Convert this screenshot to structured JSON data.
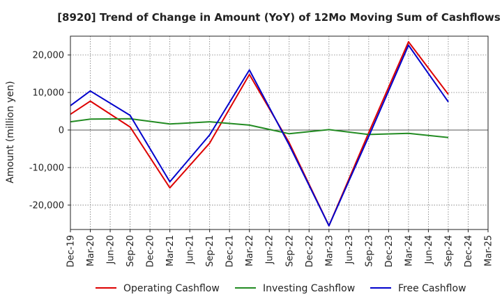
{
  "chart_data": {
    "type": "line",
    "title": "[8920]  Trend of Change in Amount (YoY) of 12Mo Moving Sum of Cashflows",
    "ylabel": "Amount (million yen)",
    "xlabel": "",
    "ylim": [
      -26500,
      25000
    ],
    "yticks": [
      20000,
      10000,
      0,
      -10000,
      -20000
    ],
    "ytick_labels": [
      "20,000",
      "10,000",
      "0",
      "-10,000",
      "-20,000"
    ],
    "grid": true,
    "legend_position": "bottom",
    "categories": [
      "Dec-19",
      "Mar-20",
      "Jun-20",
      "Sep-20",
      "Dec-20",
      "Mar-21",
      "Jun-21",
      "Sep-21",
      "Dec-21",
      "Mar-22",
      "Jun-22",
      "Sep-22",
      "Dec-22",
      "Mar-23",
      "Jun-23",
      "Sep-23",
      "Dec-23",
      "Mar-24",
      "Jun-24",
      "Sep-24",
      "Dec-24",
      "Mar-25"
    ],
    "series": [
      {
        "name": "Operating Cashflow",
        "color": "#dd0000",
        "values": [
          4200,
          7700,
          null,
          800,
          null,
          -15400,
          null,
          -3500,
          null,
          14800,
          null,
          -3400,
          null,
          -25500,
          null,
          -700,
          null,
          23500,
          null,
          9500,
          null,
          null
        ]
      },
      {
        "name": "Investing Cashflow",
        "color": "#228b22",
        "values": [
          2200,
          2900,
          null,
          3000,
          null,
          1600,
          null,
          2200,
          null,
          1300,
          null,
          -1000,
          null,
          100,
          null,
          -1200,
          null,
          -900,
          null,
          -2000,
          null,
          null
        ]
      },
      {
        "name": "Free Cashflow",
        "color": "#0000cc",
        "values": [
          6500,
          10400,
          null,
          3900,
          null,
          -13800,
          null,
          -1300,
          null,
          16000,
          null,
          -4000,
          null,
          -25500,
          null,
          -1700,
          null,
          22600,
          null,
          7500,
          null,
          null
        ]
      }
    ]
  }
}
